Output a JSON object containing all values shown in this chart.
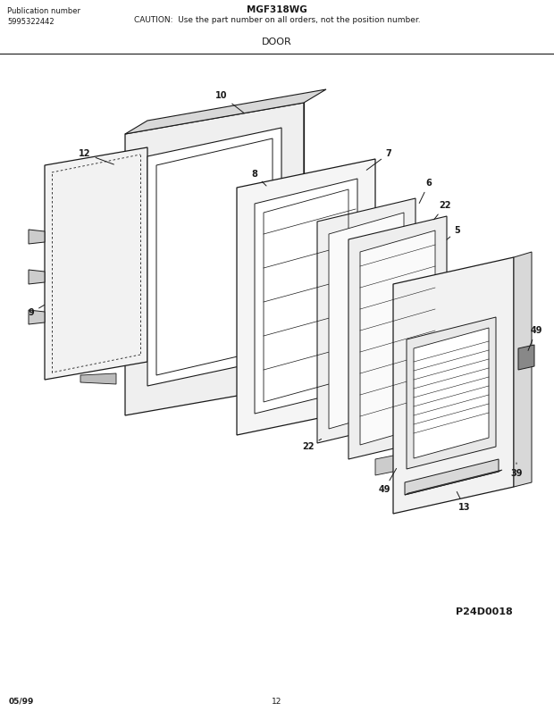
{
  "title_model": "MGF318WG",
  "title_caution": "CAUTION:  Use the part number on all orders, not the position number.",
  "title_section": "DOOR",
  "pub_label": "Publication number",
  "pub_number": "5995322442",
  "diagram_id": "P24D0018",
  "page_number": "12",
  "date": "05/99",
  "bg": "#ffffff",
  "lc": "#1a1a1a"
}
